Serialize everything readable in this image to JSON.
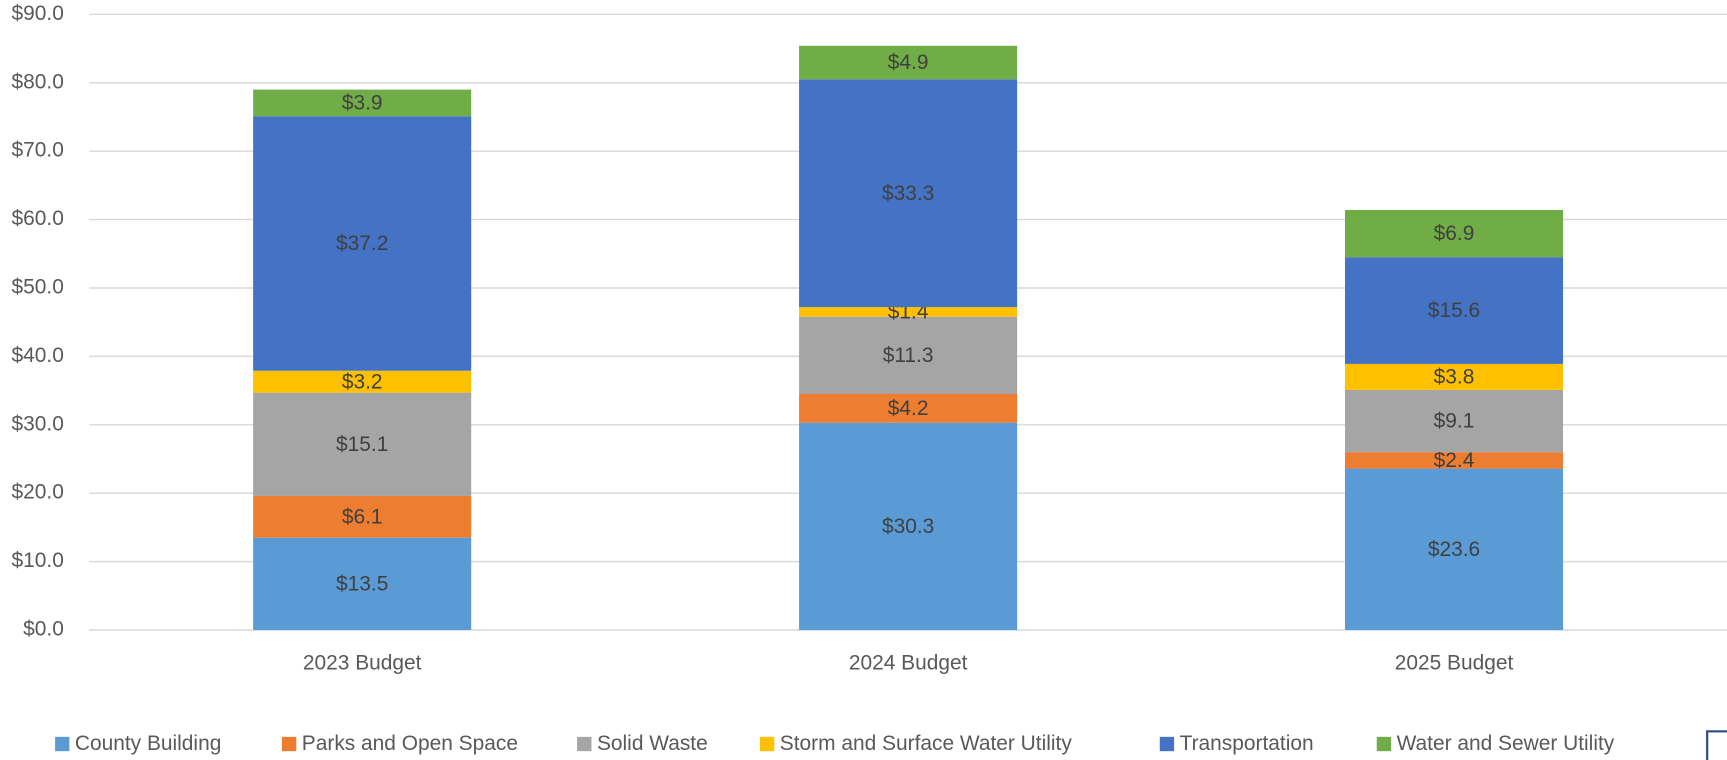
{
  "chart_data": {
    "type": "stacked_bar",
    "categories": [
      "2023 Budget",
      "2024 Budget",
      "2025 Budget"
    ],
    "series": [
      {
        "name": "County Building",
        "color": "#5b9bd5",
        "values": [
          13.5,
          30.3,
          23.6
        ],
        "value_labels": [
          "$13.5",
          "$30.3",
          "$23.6"
        ]
      },
      {
        "name": "Parks and Open Space",
        "color": "#ed7d31",
        "values": [
          6.1,
          4.2,
          2.4
        ],
        "value_labels": [
          "$6.1",
          "$4.2",
          "$2.4"
        ]
      },
      {
        "name": "Solid Waste",
        "color": "#a5a5a5",
        "values": [
          15.1,
          11.3,
          9.1
        ],
        "value_labels": [
          "$15.1",
          "$11.3",
          "$9.1"
        ]
      },
      {
        "name": "Storm and Surface Water Utility",
        "color": "#ffc000",
        "values": [
          3.2,
          1.4,
          3.8
        ],
        "value_labels": [
          "$3.2",
          "$1.4",
          "$3.8"
        ]
      },
      {
        "name": "Transportation",
        "color": "#4472c4",
        "values": [
          37.2,
          33.3,
          15.6
        ],
        "value_labels": [
          "$37.2",
          "$33.3",
          "$15.6"
        ]
      },
      {
        "name": "Water and Sewer Utility",
        "color": "#70ad47",
        "values": [
          3.9,
          4.9,
          6.9
        ],
        "value_labels": [
          "$3.9",
          "$4.9",
          "$6.9"
        ]
      }
    ],
    "ylim": [
      0,
      90
    ],
    "yticks": [
      {
        "value": 0,
        "label": "$0.0"
      },
      {
        "value": 10,
        "label": "$10.0"
      },
      {
        "value": 20,
        "label": "$20.0"
      },
      {
        "value": 30,
        "label": "$30.0"
      },
      {
        "value": 40,
        "label": "$40.0"
      },
      {
        "value": 50,
        "label": "$50.0"
      },
      {
        "value": 60,
        "label": "$60.0"
      },
      {
        "value": 70,
        "label": "$70.0"
      },
      {
        "value": 80,
        "label": "$80.0"
      },
      {
        "value": 90,
        "label": "$90.0"
      }
    ],
    "grid": true,
    "legend": "bottom"
  }
}
